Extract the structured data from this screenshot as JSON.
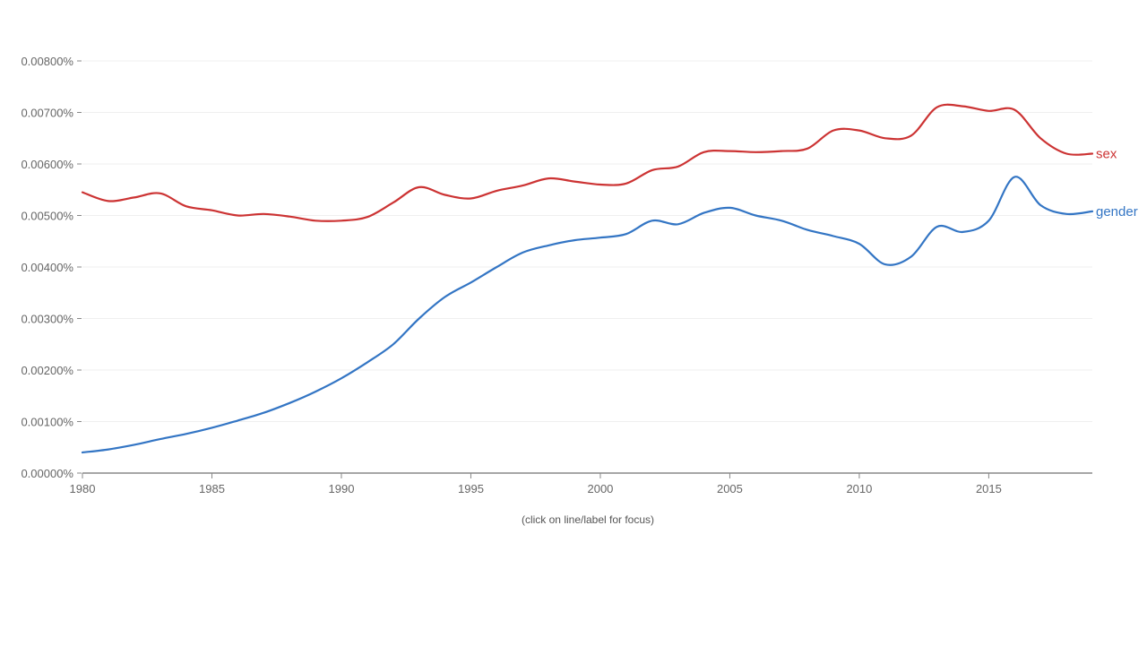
{
  "chart_data": {
    "type": "line",
    "x": [
      1980,
      1981,
      1982,
      1983,
      1984,
      1985,
      1986,
      1987,
      1988,
      1989,
      1990,
      1991,
      1992,
      1993,
      1994,
      1995,
      1996,
      1997,
      1998,
      1999,
      2000,
      2001,
      2002,
      2003,
      2004,
      2005,
      2006,
      2007,
      2008,
      2009,
      2010,
      2011,
      2012,
      2013,
      2014,
      2015,
      2016,
      2017,
      2018,
      2019
    ],
    "series": [
      {
        "name": "sex",
        "color": "#cc3333",
        "values": [
          0.00545,
          0.00528,
          0.00535,
          0.00543,
          0.00518,
          0.0051,
          0.005,
          0.00503,
          0.00498,
          0.0049,
          0.0049,
          0.00497,
          0.00525,
          0.00555,
          0.0054,
          0.00533,
          0.00548,
          0.00558,
          0.00572,
          0.00566,
          0.0056,
          0.00562,
          0.00588,
          0.00595,
          0.00623,
          0.00625,
          0.00623,
          0.00625,
          0.0063,
          0.00665,
          0.00665,
          0.0065,
          0.00655,
          0.0071,
          0.00712,
          0.00703,
          0.00705,
          0.0065,
          0.0062,
          0.0062
        ]
      },
      {
        "name": "gender",
        "color": "#3375c4",
        "values": [
          0.0004,
          0.00046,
          0.00055,
          0.00066,
          0.00076,
          0.00088,
          0.00102,
          0.00117,
          0.00136,
          0.00158,
          0.00184,
          0.00215,
          0.0025,
          0.003,
          0.00342,
          0.0037,
          0.004,
          0.00428,
          0.00442,
          0.00452,
          0.00457,
          0.00464,
          0.0049,
          0.00483,
          0.00505,
          0.00515,
          0.005,
          0.0049,
          0.00472,
          0.0046,
          0.00445,
          0.00405,
          0.0042,
          0.00478,
          0.00468,
          0.0049,
          0.00575,
          0.0052,
          0.00503,
          0.00508
        ]
      }
    ],
    "yticks": [
      "0.00000%",
      "0.00100%",
      "0.00200%",
      "0.00300%",
      "0.00400%",
      "0.00500%",
      "0.00600%",
      "0.00700%",
      "0.00800%"
    ],
    "ytick_values": [
      0,
      0.001,
      0.002,
      0.003,
      0.004,
      0.005,
      0.006,
      0.007,
      0.008
    ],
    "xticks": [
      "1980",
      "1985",
      "1990",
      "1995",
      "2000",
      "2005",
      "2010",
      "2015"
    ],
    "xtick_values": [
      1980,
      1985,
      1990,
      1995,
      2000,
      2005,
      2010,
      2015
    ],
    "xlim": [
      1980,
      2019
    ],
    "ylim": [
      0,
      0.008
    ],
    "grid": true,
    "legend": "line-end labels",
    "footnote": "(click on line/label for focus)"
  }
}
